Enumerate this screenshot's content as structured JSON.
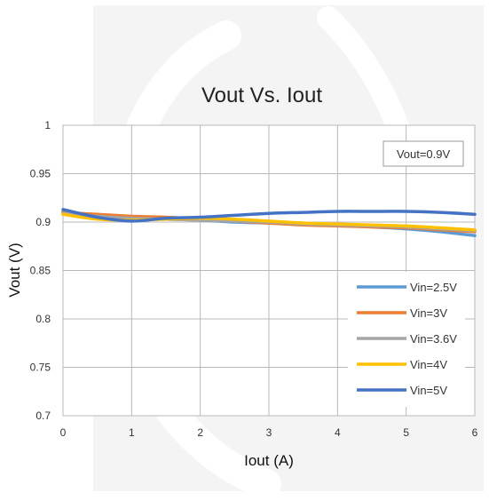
{
  "chart_data": {
    "type": "line",
    "title": "Vout Vs. Iout",
    "xlabel": "Iout (A)",
    "ylabel": "Vout (V)",
    "xlim": [
      0,
      6
    ],
    "ylim": [
      0.7,
      1
    ],
    "x_ticks": [
      "0",
      "1",
      "2",
      "3",
      "4",
      "5",
      "6"
    ],
    "y_ticks": [
      "0.7",
      "0.75",
      "0.8",
      "0.85",
      "0.9",
      "0.95",
      "1"
    ],
    "grid": true,
    "legend_position": "right",
    "annotation": "Vout=0.9V",
    "series": [
      {
        "name": "Vin=2.5V",
        "color": "#5B9BD5",
        "points": [
          [
            0,
            0.911
          ],
          [
            0.5,
            0.907
          ],
          [
            1,
            0.905
          ],
          [
            1.5,
            0.903
          ],
          [
            2,
            0.902
          ],
          [
            2.5,
            0.9
          ],
          [
            3,
            0.899
          ],
          [
            3.5,
            0.898
          ],
          [
            4,
            0.897
          ],
          [
            4.5,
            0.895
          ],
          [
            5,
            0.893
          ],
          [
            5.5,
            0.89
          ],
          [
            6,
            0.886
          ]
        ]
      },
      {
        "name": "Vin=3V",
        "color": "#ED7D31",
        "points": [
          [
            0,
            0.91
          ],
          [
            0.5,
            0.908
          ],
          [
            1,
            0.906
          ],
          [
            1.5,
            0.905
          ],
          [
            2,
            0.903
          ],
          [
            2.5,
            0.901
          ],
          [
            3,
            0.899
          ],
          [
            3.5,
            0.897
          ],
          [
            4,
            0.896
          ],
          [
            4.5,
            0.895
          ],
          [
            5,
            0.894
          ],
          [
            5.5,
            0.892
          ],
          [
            6,
            0.89
          ]
        ]
      },
      {
        "name": "Vin=3.6V",
        "color": "#A5A5A5",
        "points": [
          [
            0,
            0.909
          ],
          [
            0.5,
            0.906
          ],
          [
            1,
            0.904
          ],
          [
            1.5,
            0.903
          ],
          [
            2,
            0.902
          ],
          [
            2.5,
            0.901
          ],
          [
            3,
            0.9
          ],
          [
            3.5,
            0.898
          ],
          [
            4,
            0.897
          ],
          [
            4.5,
            0.896
          ],
          [
            5,
            0.895
          ],
          [
            5.5,
            0.893
          ],
          [
            6,
            0.891
          ]
        ]
      },
      {
        "name": "Vin=4V",
        "color": "#FFC000",
        "points": [
          [
            0,
            0.908
          ],
          [
            0.5,
            0.903
          ],
          [
            1,
            0.902
          ],
          [
            1.5,
            0.903
          ],
          [
            2,
            0.904
          ],
          [
            2.5,
            0.903
          ],
          [
            3,
            0.901
          ],
          [
            3.5,
            0.899
          ],
          [
            4,
            0.898
          ],
          [
            4.5,
            0.897
          ],
          [
            5,
            0.896
          ],
          [
            5.5,
            0.894
          ],
          [
            6,
            0.892
          ]
        ]
      },
      {
        "name": "Vin=5V",
        "color": "#4472C4",
        "points": [
          [
            0,
            0.913
          ],
          [
            0.5,
            0.905
          ],
          [
            1,
            0.901
          ],
          [
            1.5,
            0.904
          ],
          [
            2,
            0.905
          ],
          [
            2.5,
            0.907
          ],
          [
            3,
            0.909
          ],
          [
            3.5,
            0.91
          ],
          [
            4,
            0.911
          ],
          [
            4.5,
            0.911
          ],
          [
            5,
            0.911
          ],
          [
            5.5,
            0.91
          ],
          [
            6,
            0.908
          ]
        ]
      }
    ]
  }
}
